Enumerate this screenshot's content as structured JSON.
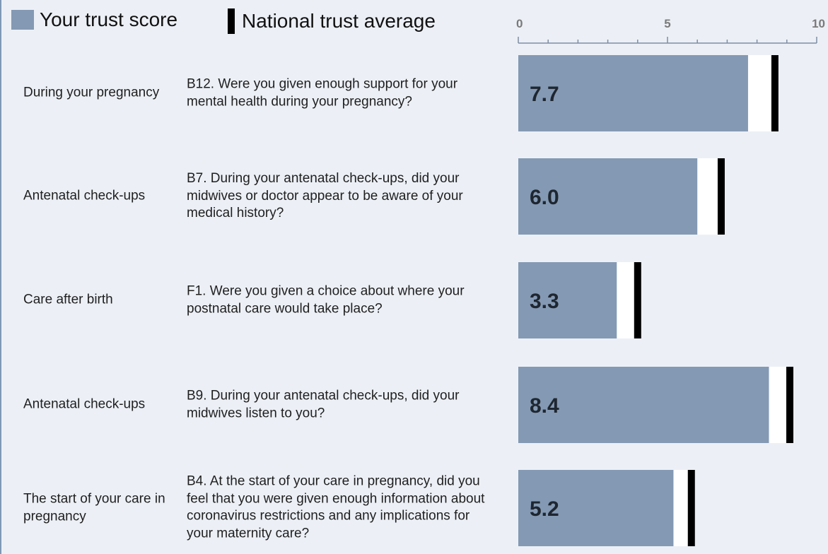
{
  "legend": {
    "trust_label": "Your trust score",
    "national_label": "National trust average"
  },
  "colors": {
    "trust_bar": "#8499b3",
    "national_marker": "#000000",
    "background": "#ecf0f6"
  },
  "rows": [
    {
      "section": "During your pregnancy",
      "question": "B12. Were you given enough support for your mental health during your pregnancy?"
    },
    {
      "section": "Antenatal check-ups",
      "question": "B7. During your antenatal check-ups, did your midwives or doctor appear to be aware of your medical history?"
    },
    {
      "section": "Care after birth",
      "question": "F1. Were you given a choice about where your postnatal care would take place?"
    },
    {
      "section": "Antenatal check-ups",
      "question": "B9. During your antenatal check-ups, did your midwives listen to you?"
    },
    {
      "section": "The start of your care in pregnancy",
      "question": "B4. At the start of your care in pregnancy, did you feel that you were given enough information about coronavirus restrictions and any implications for your maternity care?"
    }
  ],
  "chart_data": {
    "type": "bar",
    "orientation": "horizontal",
    "categories": [
      "B12",
      "B7",
      "F1",
      "B9",
      "B4"
    ],
    "series": [
      {
        "name": "Your trust score",
        "values": [
          7.7,
          6.0,
          3.3,
          8.4,
          5.2
        ],
        "labels": [
          "7.7",
          "6.0",
          "3.3",
          "8.4",
          "5.2"
        ]
      },
      {
        "name": "National trust average",
        "values": [
          8.6,
          6.8,
          4.0,
          9.1,
          5.8
        ]
      }
    ],
    "xlim": [
      0,
      10
    ],
    "xticks": [
      "0",
      "5",
      "10"
    ],
    "minor_tick_step": 1,
    "grid": false,
    "legend_position": "top-left"
  }
}
